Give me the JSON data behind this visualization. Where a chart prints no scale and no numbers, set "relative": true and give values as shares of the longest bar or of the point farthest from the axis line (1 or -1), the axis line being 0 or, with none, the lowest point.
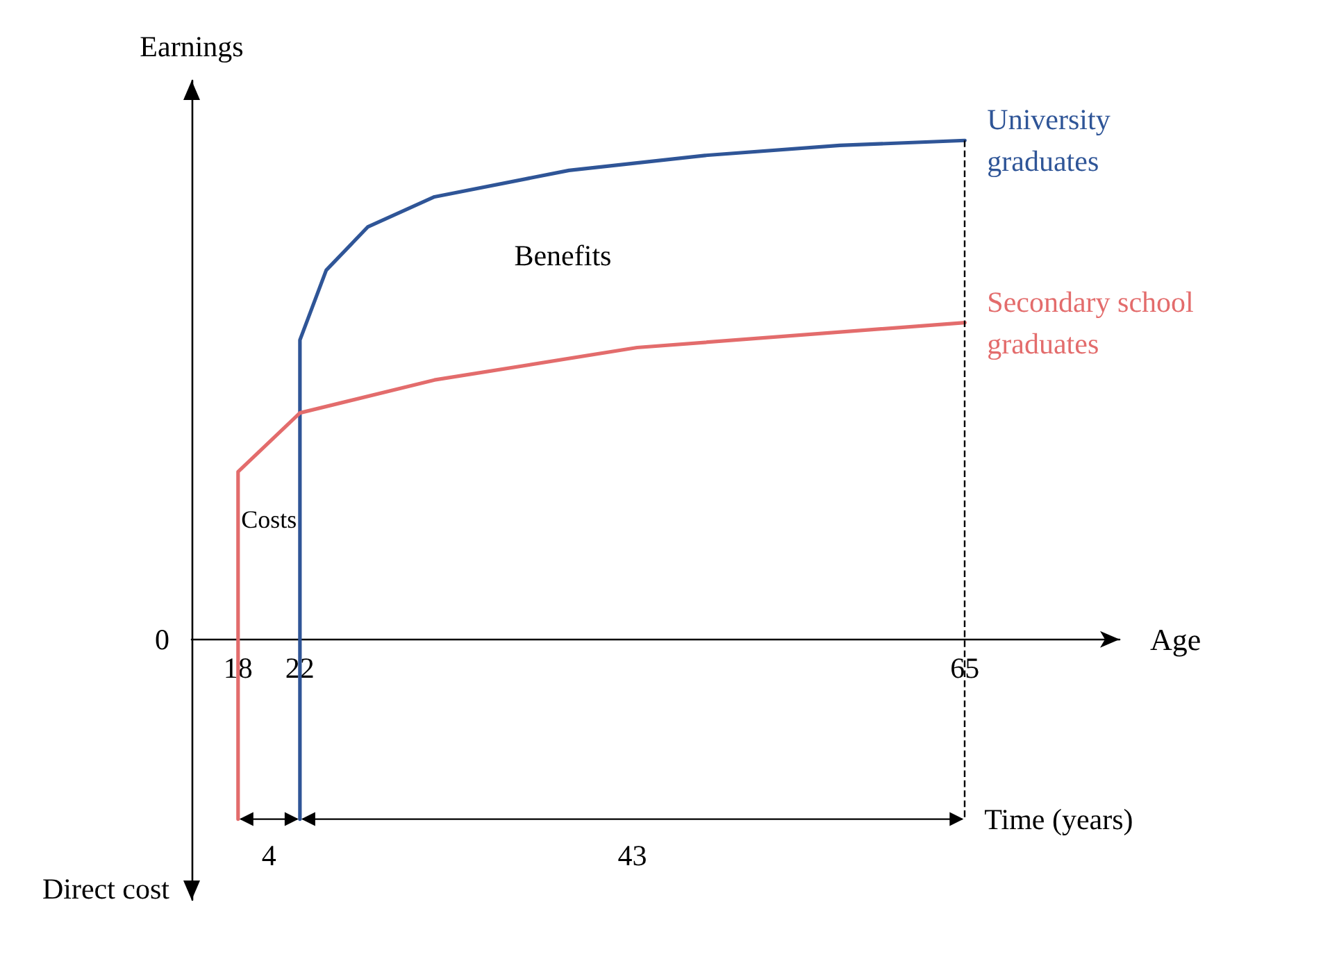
{
  "chart_data": {
    "type": "line",
    "relative": true,
    "xlabel": "Age",
    "ylabel": "Earnings",
    "xlim": [
      15,
      75
    ],
    "xticks": [
      18,
      22,
      65
    ],
    "series": [
      {
        "name": "University graduates",
        "color": "#2f5597",
        "x": [
          22,
          22,
          23.7,
          26.4,
          30.7,
          39.4,
          48.2,
          56.9,
          65
        ],
        "values": [
          -0.36,
          0.6,
          0.74,
          0.827,
          0.887,
          0.94,
          0.97,
          0.99,
          1
        ]
      },
      {
        "name": "Secondary school graduates",
        "color": "#e36c6c",
        "x": [
          18,
          18,
          22,
          30.7,
          43.8,
          65
        ],
        "values": [
          -0.36,
          0.336,
          0.454,
          0.52,
          0.585,
          0.635
        ]
      }
    ],
    "ref_lines": [
      {
        "axis": "x",
        "value": 65,
        "color": "#000000",
        "line_style": "dashed"
      }
    ],
    "annotations": [
      "Benefits",
      "Costs",
      "4",
      "43",
      "Time (years)",
      "0",
      "Direct cost"
    ],
    "grid": false,
    "legend": false,
    "marker": "none",
    "line_style": "solid"
  }
}
